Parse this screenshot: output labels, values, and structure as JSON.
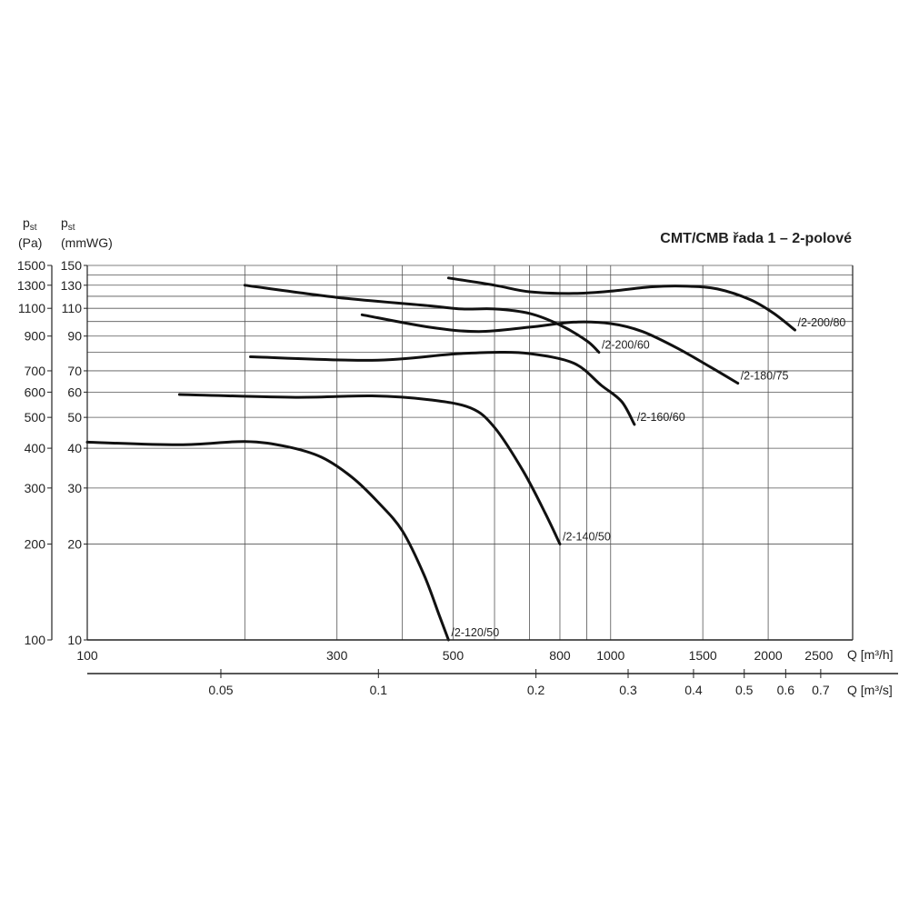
{
  "chart_data": {
    "type": "line",
    "title": "CMT/CMB řada 1 – 2-polové",
    "x_scale": "log",
    "y_scale": "log",
    "xlim": [
      100,
      2900
    ],
    "ylim_pa": [
      100,
      1500
    ],
    "ylim_mmwg": [
      10,
      150
    ],
    "x_axis_primary": {
      "title": "Q [m³/h]",
      "ticks": [
        100,
        300,
        500,
        800,
        1000,
        1500,
        2000,
        2500
      ],
      "tick_labels": [
        "100",
        "300",
        "500",
        "800",
        "1000",
        "1500",
        "2000",
        "2500"
      ]
    },
    "x_axis_secondary": {
      "title": "Q [m³/s]",
      "ticks": [
        0.05,
        0.1,
        0.2,
        0.3,
        0.4,
        0.5,
        0.6,
        0.7
      ],
      "tick_labels": [
        "0.05",
        "0.1",
        "0.2",
        "0.3",
        "0.4",
        "0.5",
        "0.6",
        "0.7"
      ]
    },
    "y_axis_pa": {
      "title_main": "p",
      "title_sub": "st",
      "unit": "(Pa)",
      "ticks": [
        100,
        200,
        300,
        400,
        500,
        600,
        700,
        900,
        1100,
        1300,
        1500
      ],
      "tick_labels": [
        "100",
        "200",
        "300",
        "400",
        "500",
        "600",
        "700",
        "900",
        "1100",
        "1300",
        "1500"
      ]
    },
    "y_axis_mmwg": {
      "title_main": "p",
      "title_sub": "st",
      "unit": "(mmWG)",
      "ticks": [
        10,
        20,
        30,
        40,
        50,
        60,
        70,
        90,
        110,
        130,
        150
      ],
      "tick_labels": [
        "10",
        "20",
        "30",
        "40",
        "50",
        "60",
        "70",
        "90",
        "110",
        "130",
        "150"
      ]
    },
    "vertical_gridlines_q": [
      200,
      300,
      400,
      500,
      600,
      700,
      800,
      900,
      1000,
      1500,
      2000
    ],
    "horizontal_gridlines_pa": [
      100,
      200,
      300,
      400,
      500,
      600,
      700,
      800,
      900,
      1000,
      1100,
      1200,
      1300,
      1400,
      1500
    ],
    "grid": true,
    "series": [
      {
        "name": "/2-120/50",
        "points": [
          [
            100,
            418
          ],
          [
            150,
            410
          ],
          [
            200,
            420
          ],
          [
            240,
            405
          ],
          [
            280,
            375
          ],
          [
            320,
            325
          ],
          [
            360,
            270
          ],
          [
            400,
            220
          ],
          [
            440,
            160
          ],
          [
            470,
            120
          ],
          [
            490,
            100
          ]
        ]
      },
      {
        "name": "/2-140/50",
        "points": [
          [
            150,
            590
          ],
          [
            250,
            578
          ],
          [
            350,
            584
          ],
          [
            450,
            568
          ],
          [
            540,
            535
          ],
          [
            600,
            465
          ],
          [
            680,
            340
          ],
          [
            750,
            250
          ],
          [
            800,
            200
          ]
        ]
      },
      {
        "name": "/2-160/60",
        "points": [
          [
            205,
            775
          ],
          [
            350,
            755
          ],
          [
            500,
            790
          ],
          [
            600,
            800
          ],
          [
            700,
            793
          ],
          [
            850,
            740
          ],
          [
            960,
            630
          ],
          [
            1050,
            560
          ],
          [
            1110,
            475
          ]
        ]
      },
      {
        "name": "/2-200/60",
        "points": [
          [
            200,
            1300
          ],
          [
            300,
            1190
          ],
          [
            450,
            1120
          ],
          [
            520,
            1095
          ],
          [
            600,
            1095
          ],
          [
            700,
            1060
          ],
          [
            800,
            975
          ],
          [
            900,
            870
          ],
          [
            950,
            800
          ]
        ]
      },
      {
        "name": "/2-180/75",
        "points": [
          [
            335,
            1050
          ],
          [
            450,
            960
          ],
          [
            560,
            930
          ],
          [
            700,
            960
          ],
          [
            850,
            995
          ],
          [
            1000,
            985
          ],
          [
            1150,
            930
          ],
          [
            1350,
            820
          ],
          [
            1550,
            720
          ],
          [
            1750,
            640
          ]
        ]
      },
      {
        "name": "/2-200/80",
        "points": [
          [
            490,
            1370
          ],
          [
            600,
            1300
          ],
          [
            700,
            1240
          ],
          [
            850,
            1225
          ],
          [
            1000,
            1245
          ],
          [
            1200,
            1285
          ],
          [
            1400,
            1290
          ],
          [
            1600,
            1265
          ],
          [
            1850,
            1170
          ],
          [
            2050,
            1060
          ],
          [
            2250,
            940
          ]
        ]
      }
    ]
  }
}
